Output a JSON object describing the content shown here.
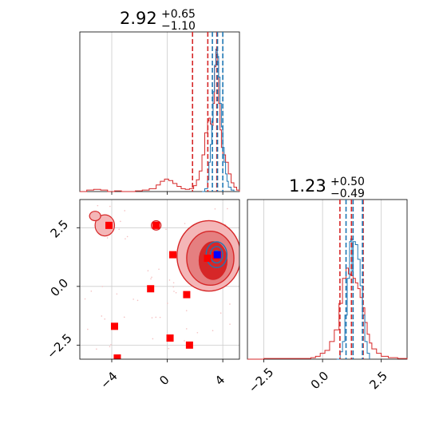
{
  "chart_data": {
    "type": "corner",
    "colors": {
      "red": "#d62728",
      "blue": "#1f77b4",
      "marker_red": "#ff0000",
      "marker_blue": "#0000ff",
      "grid": "#cccccc",
      "fill_light": "#f4b6b7",
      "fill_mid": "#e57f80",
      "fill_dark": "#d62728"
    },
    "param1": {
      "title": {
        "value": "2.92",
        "plus": "+0.65",
        "minus": "−1.10"
      },
      "xlim": [
        -6.3,
        5.2
      ],
      "ticks": [
        -4,
        0,
        4
      ],
      "tick_labels": [
        "−4",
        "0",
        "4"
      ],
      "red_quantile_lines": [
        1.82,
        2.92,
        3.57
      ],
      "blue_quantile_lines": [
        3.25,
        3.62,
        4.0
      ],
      "red_hist": [
        [
          -6.3,
          0
        ],
        [
          -5.8,
          0.01
        ],
        [
          -5.3,
          0.015
        ],
        [
          -4.8,
          0.01
        ],
        [
          -4.3,
          0
        ],
        [
          -3.8,
          0.005
        ],
        [
          -3.3,
          0
        ],
        [
          -2.8,
          0
        ],
        [
          -2.3,
          0.005
        ],
        [
          -1.8,
          0.01
        ],
        [
          -1.3,
          0.02
        ],
        [
          -0.8,
          0.045
        ],
        [
          -0.5,
          0.07
        ],
        [
          -0.2,
          0.085
        ],
        [
          0.1,
          0.075
        ],
        [
          0.4,
          0.055
        ],
        [
          0.7,
          0.035
        ],
        [
          1.0,
          0.02
        ],
        [
          1.3,
          0.015
        ],
        [
          1.6,
          0.02
        ],
        [
          1.9,
          0.04
        ],
        [
          2.1,
          0.08
        ],
        [
          2.3,
          0.14
        ],
        [
          2.5,
          0.25
        ],
        [
          2.7,
          0.4
        ],
        [
          2.9,
          0.48
        ],
        [
          3.0,
          0.5
        ],
        [
          3.1,
          0.46
        ],
        [
          3.2,
          0.45
        ],
        [
          3.3,
          0.6
        ],
        [
          3.4,
          0.85
        ],
        [
          3.5,
          0.95
        ],
        [
          3.6,
          0.88
        ],
        [
          3.7,
          0.6
        ],
        [
          3.8,
          0.42
        ],
        [
          3.9,
          0.3
        ],
        [
          4.0,
          0.25
        ],
        [
          4.2,
          0.2
        ],
        [
          4.4,
          0.12
        ],
        [
          4.6,
          0.06
        ],
        [
          4.8,
          0.03
        ],
        [
          5.0,
          0.01
        ],
        [
          5.2,
          0
        ]
      ],
      "blue_hist": [
        [
          2.5,
          0
        ],
        [
          2.7,
          0.02
        ],
        [
          2.9,
          0.08
        ],
        [
          3.0,
          0.2
        ],
        [
          3.1,
          0.32
        ],
        [
          3.2,
          0.48
        ],
        [
          3.3,
          0.68
        ],
        [
          3.4,
          0.86
        ],
        [
          3.5,
          0.97
        ],
        [
          3.6,
          0.92
        ],
        [
          3.7,
          0.78
        ],
        [
          3.8,
          0.6
        ],
        [
          3.9,
          0.44
        ],
        [
          4.0,
          0.3
        ],
        [
          4.1,
          0.2
        ],
        [
          4.2,
          0.12
        ],
        [
          4.3,
          0.07
        ],
        [
          4.4,
          0.03
        ],
        [
          4.6,
          0.01
        ],
        [
          4.8,
          0
        ]
      ]
    },
    "param2": {
      "title": {
        "value": "1.23",
        "plus": "+0.50",
        "minus": "−0.49"
      },
      "xlim": [
        -3.2,
        3.6
      ],
      "ticks": [
        -2.5,
        0.0,
        2.5
      ],
      "tick_labels": [
        "−2.5",
        "0.0",
        "2.5"
      ],
      "red_quantile_lines": [
        0.74,
        1.23,
        1.73
      ],
      "blue_quantile_lines": [
        1.0,
        1.3,
        1.7
      ],
      "red_hist": [
        [
          -3.2,
          0
        ],
        [
          -2.5,
          0.005
        ],
        [
          -1.5,
          0.005
        ],
        [
          -0.5,
          0.01
        ],
        [
          -0.3,
          0.02
        ],
        [
          -0.1,
          0.04
        ],
        [
          0.1,
          0.06
        ],
        [
          0.3,
          0.12
        ],
        [
          0.5,
          0.2
        ],
        [
          0.7,
          0.38
        ],
        [
          0.85,
          0.55
        ],
        [
          1.0,
          0.62
        ],
        [
          1.1,
          0.58
        ],
        [
          1.2,
          0.57
        ],
        [
          1.3,
          0.55
        ],
        [
          1.4,
          0.52
        ],
        [
          1.5,
          0.48
        ],
        [
          1.6,
          0.42
        ],
        [
          1.7,
          0.35
        ],
        [
          1.8,
          0.25
        ],
        [
          1.9,
          0.17
        ],
        [
          2.0,
          0.11
        ],
        [
          2.1,
          0.07
        ],
        [
          2.3,
          0.04
        ],
        [
          2.5,
          0.02
        ],
        [
          2.8,
          0.01
        ],
        [
          3.2,
          0.005
        ],
        [
          3.6,
          0
        ]
      ],
      "blue_hist": [
        [
          0.6,
          0
        ],
        [
          0.75,
          0.05
        ],
        [
          0.85,
          0.12
        ],
        [
          0.95,
          0.3
        ],
        [
          1.05,
          0.55
        ],
        [
          1.15,
          0.8
        ],
        [
          1.2,
          0.82
        ],
        [
          1.25,
          0.6
        ],
        [
          1.3,
          0.8
        ],
        [
          1.4,
          0.78
        ],
        [
          1.5,
          0.68
        ],
        [
          1.6,
          0.5
        ],
        [
          1.7,
          0.3
        ],
        [
          1.8,
          0.12
        ],
        [
          1.9,
          0.04
        ],
        [
          2.0,
          0
        ]
      ]
    },
    "joint": {
      "xlim": [
        -6.3,
        5.2
      ],
      "ylim": [
        -3.1,
        3.7
      ],
      "x_ticks": [
        -4,
        0,
        4
      ],
      "x_tick_labels": [
        "−4",
        "0",
        "4"
      ],
      "y_ticks": [
        -2.5,
        0.0,
        2.5
      ],
      "y_tick_labels": [
        "−2.5",
        "0.0",
        "2.5"
      ],
      "red_markers": [
        [
          -4.2,
          2.6
        ],
        [
          -0.8,
          2.6
        ],
        [
          0.4,
          1.35
        ],
        [
          -1.2,
          -0.1
        ],
        [
          1.4,
          -0.35
        ],
        [
          -3.8,
          -1.7
        ],
        [
          0.2,
          -2.2
        ],
        [
          1.6,
          -2.5
        ],
        [
          -3.6,
          -3.05
        ],
        [
          2.9,
          1.2
        ],
        [
          3.5,
          1.3
        ]
      ],
      "blue_markers": [
        [
          3.6,
          1.35
        ]
      ],
      "red_contours": [
        {
          "level": "outer",
          "cx": 3.0,
          "cy": 1.3,
          "rx": 2.3,
          "ry": 1.5
        },
        {
          "level": "mid",
          "cx": 3.1,
          "cy": 1.2,
          "rx": 1.7,
          "ry": 1.15
        },
        {
          "level": "inner",
          "cx": 3.3,
          "cy": 1.1,
          "rx": 1.0,
          "ry": 0.8
        }
      ],
      "red_secondary_contours": [
        {
          "cx": -4.5,
          "cy": 2.6,
          "rx": 0.7,
          "ry": 0.45
        },
        {
          "cx": -0.8,
          "cy": 2.6,
          "rx": 0.35,
          "ry": 0.2
        },
        {
          "cx": -5.2,
          "cy": 3.0,
          "rx": 0.4,
          "ry": 0.2
        }
      ],
      "blue_contours": [
        {
          "cx": 3.55,
          "cy": 1.35,
          "rx": 0.75,
          "ry": 0.55
        },
        {
          "cx": 3.55,
          "cy": 1.35,
          "rx": 0.45,
          "ry": 0.35
        },
        {
          "cx": 3.55,
          "cy": 1.35,
          "rx": 0.2,
          "ry": 0.17
        }
      ]
    }
  }
}
